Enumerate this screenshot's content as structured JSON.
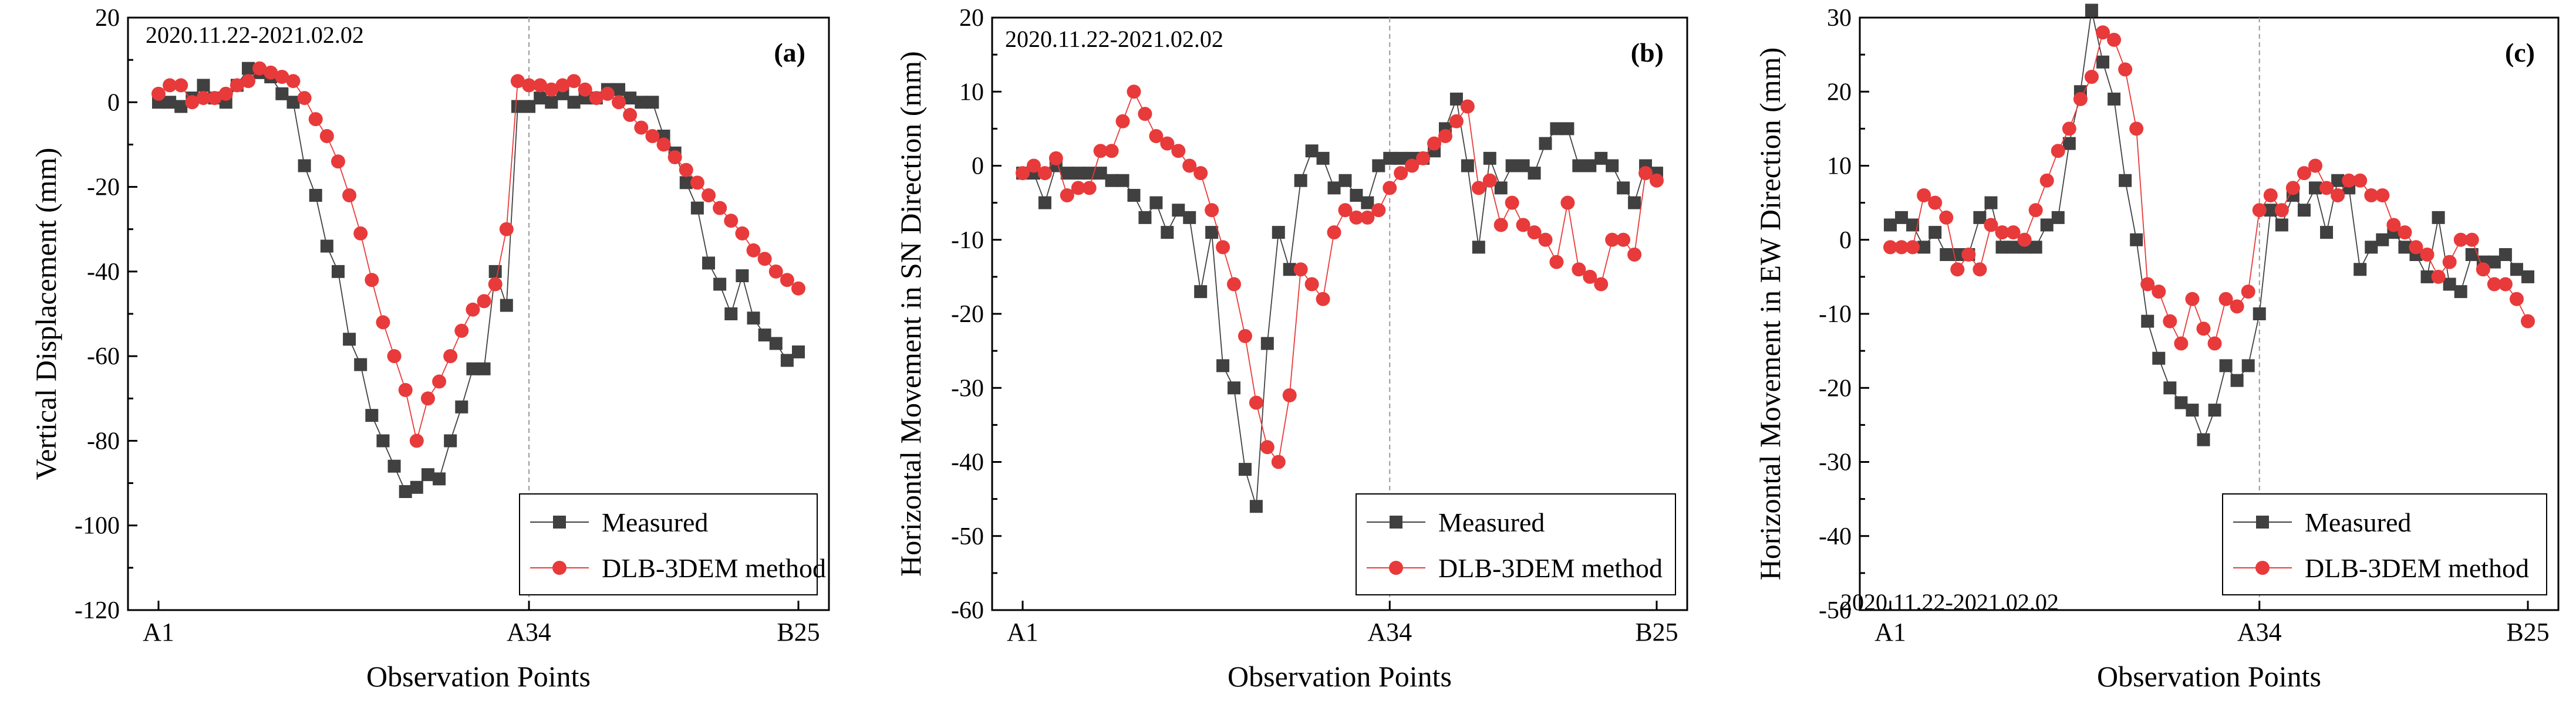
{
  "chart_data": [
    {
      "panel": "(a)",
      "type": "line",
      "date_range": "2020.11.22-2021.02.02",
      "ylabel": "Vertical Displacement (mm)",
      "xlabel": "Observation Points",
      "ylim": [
        -120,
        20
      ],
      "yticks": [
        -120,
        -100,
        -80,
        -60,
        -40,
        -20,
        0,
        20
      ],
      "x_ticks": [
        {
          "label": "A1",
          "index": 0
        },
        {
          "label": "A34",
          "index": 33
        },
        {
          "label": "B25",
          "index": 57
        }
      ],
      "divider_index": 33,
      "series": [
        {
          "name": "Measured",
          "color": "#404040",
          "marker": "square",
          "values": [
            0,
            0,
            -1,
            1,
            4,
            1,
            0,
            4,
            8,
            7,
            6,
            2,
            0,
            -15,
            -22,
            -34,
            -40,
            -56,
            -62,
            -74,
            -80,
            -86,
            -92,
            -91,
            -88,
            -89,
            -80,
            -72,
            -63,
            -63,
            -40,
            -48,
            -1,
            -1,
            1,
            0,
            2,
            0,
            1,
            1,
            3,
            3,
            1,
            0,
            0,
            -8,
            -12,
            -19,
            -25,
            -38,
            -43,
            -50,
            -41,
            -51,
            -55,
            -57,
            -61,
            -59
          ]
        },
        {
          "name": "DLB-3DEM method",
          "color": "#e83a3a",
          "marker": "circle",
          "values": [
            2,
            4,
            4,
            0,
            1,
            1,
            2,
            4,
            5,
            8,
            7,
            6,
            5,
            1,
            -4,
            -8,
            -14,
            -22,
            -31,
            -42,
            -52,
            -60,
            -68,
            -80,
            -70,
            -66,
            -60,
            -54,
            -49,
            -47,
            -43,
            -30,
            5,
            4,
            4,
            3,
            4,
            5,
            3,
            1,
            2,
            0,
            -3,
            -6,
            -8,
            -10,
            -13,
            -16,
            -19,
            -22,
            -25,
            -28,
            -31,
            -35,
            -37,
            -40,
            -42,
            -44
          ]
        }
      ]
    },
    {
      "panel": "(b)",
      "type": "line",
      "date_range": "2020.11.22-2021.02.02",
      "ylabel": "Horizontal Movement in SN Direction (mm)",
      "xlabel": "Observation Points",
      "ylim": [
        -60,
        20
      ],
      "yticks": [
        -60,
        -50,
        -40,
        -30,
        -20,
        -10,
        0,
        10,
        20
      ],
      "x_ticks": [
        {
          "label": "A1",
          "index": 0
        },
        {
          "label": "A34",
          "index": 33
        },
        {
          "label": "B25",
          "index": 57
        }
      ],
      "divider_index": 33,
      "series": [
        {
          "name": "Measured",
          "color": "#404040",
          "marker": "square",
          "values": [
            -1,
            -1,
            -5,
            0,
            -1,
            -1,
            -1,
            -1,
            -2,
            -2,
            -4,
            -7,
            -5,
            -9,
            -6,
            -7,
            -17,
            -9,
            -27,
            -30,
            -41,
            -46,
            -24,
            -9,
            -14,
            -2,
            2,
            1,
            -3,
            -2,
            -4,
            -5,
            0,
            1,
            1,
            1,
            1,
            2,
            5,
            9,
            0,
            -11,
            1,
            -3,
            0,
            0,
            -1,
            3,
            5,
            5,
            0,
            0,
            1,
            0,
            -3,
            -5,
            0,
            -1
          ]
        },
        {
          "name": "DLB-3DEM method",
          "color": "#e83a3a",
          "marker": "circle",
          "values": [
            -1,
            0,
            -1,
            1,
            -4,
            -3,
            -3,
            2,
            2,
            6,
            10,
            7,
            4,
            3,
            2,
            0,
            -1,
            -6,
            -11,
            -16,
            -23,
            -32,
            -38,
            -40,
            -31,
            -14,
            -16,
            -18,
            -9,
            -6,
            -7,
            -7,
            -6,
            -3,
            -1,
            0,
            1,
            3,
            4,
            6,
            8,
            -3,
            -2,
            -8,
            -5,
            -8,
            -9,
            -10,
            -13,
            -5,
            -14,
            -15,
            -16,
            -10,
            -10,
            -12,
            -1,
            -2
          ]
        }
      ]
    },
    {
      "panel": "(c)",
      "type": "line",
      "date_range": "2020.11.22-2021.02.02",
      "ylabel": "Horizontal Movement in EW Direction (mm)",
      "xlabel": "Observation Points",
      "ylim": [
        -50,
        30
      ],
      "yticks": [
        -50,
        -40,
        -30,
        -20,
        -10,
        0,
        10,
        20,
        30
      ],
      "x_ticks": [
        {
          "label": "A1",
          "index": 0
        },
        {
          "label": "A34",
          "index": 33
        },
        {
          "label": "B25",
          "index": 57
        }
      ],
      "divider_index": 33,
      "series": [
        {
          "name": "Measured",
          "color": "#404040",
          "marker": "square",
          "values": [
            2,
            3,
            2,
            -1,
            1,
            -2,
            -2,
            -2,
            3,
            5,
            -1,
            -1,
            -1,
            -1,
            2,
            3,
            13,
            20,
            31,
            24,
            19,
            8,
            0,
            -11,
            -16,
            -20,
            -22,
            -23,
            -27,
            -23,
            -17,
            -19,
            -17,
            -10,
            4,
            2,
            6,
            4,
            7,
            1,
            8,
            7,
            -4,
            -1,
            0,
            1,
            -1,
            -2,
            -5,
            3,
            -6,
            -7,
            -2,
            -3,
            -3,
            -2,
            -4,
            -5
          ]
        },
        {
          "name": "DLB-3DEM method",
          "color": "#e83a3a",
          "marker": "circle",
          "values": [
            -1,
            -1,
            -1,
            6,
            5,
            3,
            -4,
            -2,
            -4,
            2,
            1,
            1,
            0,
            4,
            8,
            12,
            15,
            19,
            22,
            28,
            27,
            23,
            15,
            -6,
            -7,
            -11,
            -14,
            -8,
            -12,
            -14,
            -8,
            -9,
            -7,
            4,
            6,
            4,
            7,
            9,
            10,
            7,
            6,
            8,
            8,
            6,
            6,
            2,
            1,
            -1,
            -2,
            -5,
            -3,
            0,
            0,
            -4,
            -6,
            -6,
            -8,
            -11
          ]
        }
      ]
    }
  ]
}
